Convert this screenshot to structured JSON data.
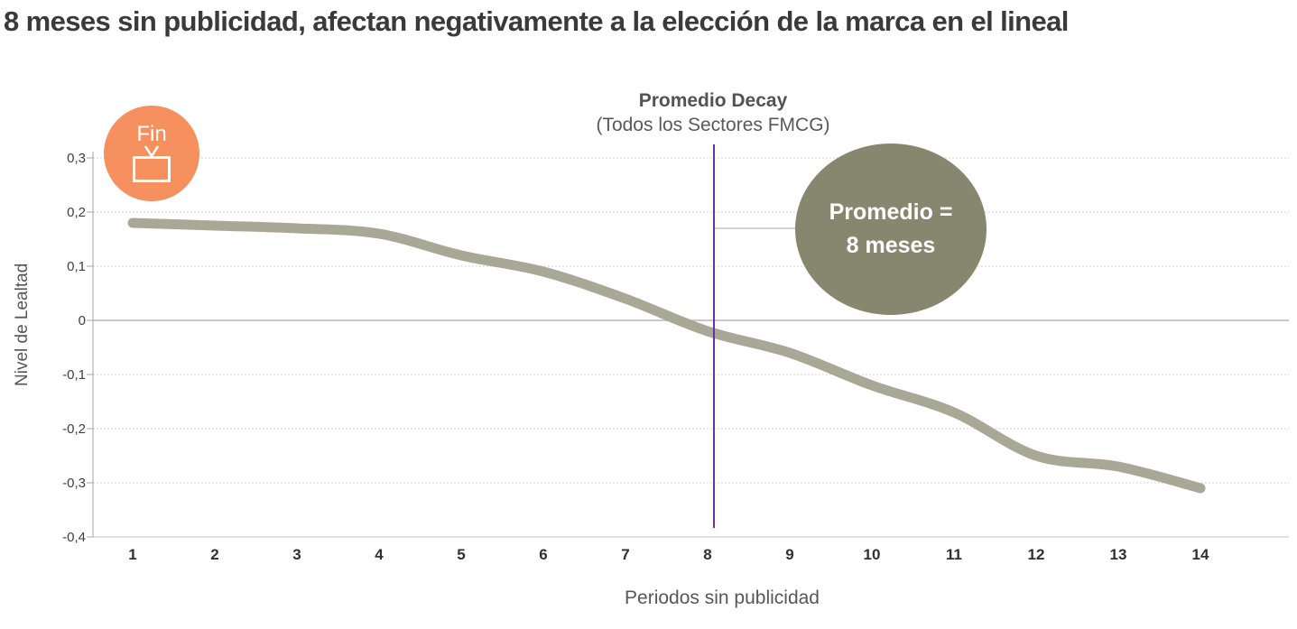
{
  "title": "8 meses sin publicidad, afectan negativamente a la elección de la marca en el lineal",
  "fin_marker": {
    "label": "Fin",
    "icon": "tv-icon"
  },
  "promedio_annotation": {
    "title": "Promedio Decay",
    "subtitle": "(Todos los Sectores FMCG)",
    "bubble_line1": "Promedio =",
    "bubble_line2": "8 meses"
  },
  "colors": {
    "curve": "#A9A896",
    "bubble_olive": "#87876F",
    "fin_orange": "#F6905E",
    "reference_purple": "#7030A0",
    "grid_dotted": "#DBDBCD",
    "zero_line": "#C9C9C9",
    "axis_line": "#A6A6A6",
    "connector": "#C6C6BE",
    "tick_text": "#3F3F3F",
    "xtick_text": "#303030",
    "title_text": "#3A3A3A"
  },
  "chart_data": {
    "type": "line",
    "title": "",
    "xlabel": "Periodos sin publicidad",
    "ylabel": "Nivel de Lealtad",
    "x": [
      1,
      2,
      3,
      4,
      5,
      6,
      7,
      8,
      9,
      10,
      11,
      12,
      13,
      14
    ],
    "series": [
      {
        "name": "Nivel de Lealtad",
        "values": [
          0.18,
          0.175,
          0.17,
          0.16,
          0.12,
          0.09,
          0.04,
          -0.02,
          -0.06,
          -0.12,
          -0.17,
          -0.25,
          -0.27,
          -0.31
        ]
      }
    ],
    "ylim": [
      -0.4,
      0.3
    ],
    "yticks": [
      0.3,
      0.2,
      0.1,
      0,
      -0.1,
      -0.2,
      -0.3,
      -0.4
    ],
    "ytick_labels": [
      "0,3",
      "0,2",
      "0,1",
      "0",
      "-0,1",
      "-0,2",
      "-0,3",
      "-0,4"
    ],
    "grid": "horizontal-dotted",
    "legend": "none",
    "reference_line_x": 8,
    "annotations": [
      "Promedio Decay (Todos los Sectores FMCG)",
      "Promedio = 8 meses",
      "Fin"
    ]
  }
}
